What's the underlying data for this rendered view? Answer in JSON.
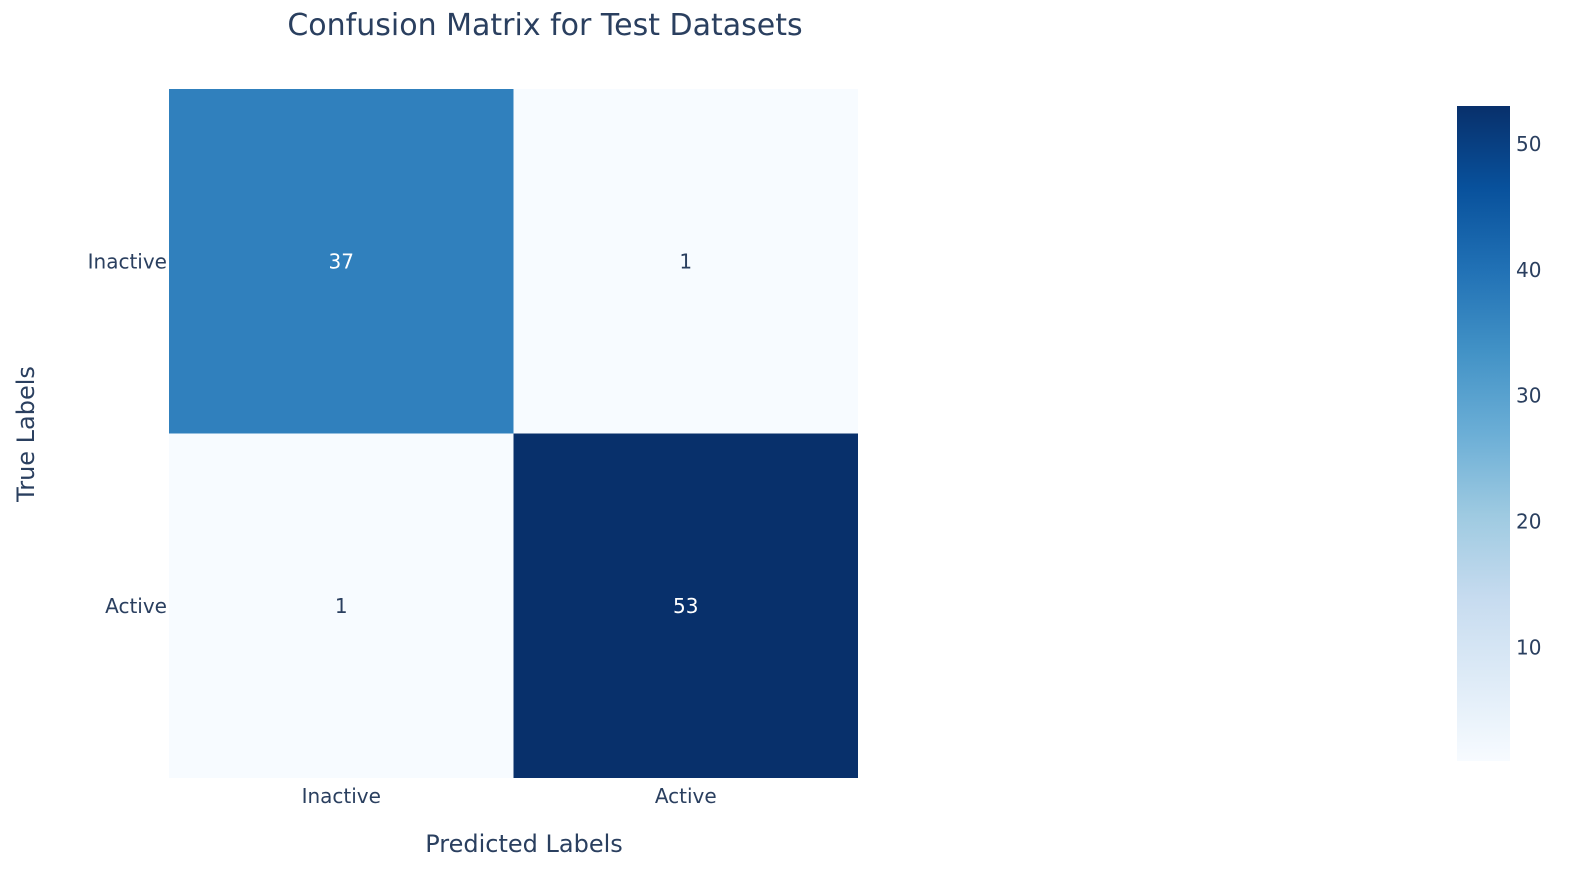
{
  "chart_data": {
    "type": "heatmap",
    "title": "Confusion Matrix for Test Datasets",
    "xlabel": "Predicted Labels",
    "ylabel": "True Labels",
    "x_categories": [
      "Inactive",
      "Active"
    ],
    "y_categories": [
      "Inactive",
      "Active"
    ],
    "z": [
      [
        37,
        1
      ],
      [
        1,
        53
      ]
    ],
    "colorscale": "Blues",
    "zmin": 1,
    "zmax": 53,
    "colorbar": {
      "ticks": [
        10,
        20,
        30,
        40,
        50
      ]
    }
  }
}
